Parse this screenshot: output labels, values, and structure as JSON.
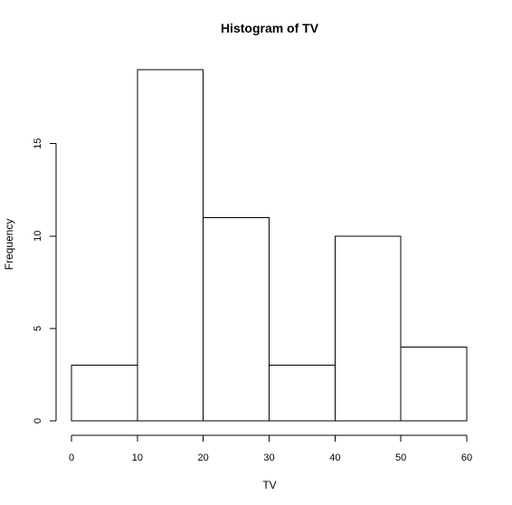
{
  "chart_data": {
    "type": "bar",
    "title": "Histogram of TV",
    "xlabel": "TV",
    "ylabel": "Frequency",
    "bins": [
      {
        "from": 0,
        "to": 10,
        "count": 3
      },
      {
        "from": 10,
        "to": 20,
        "count": 19
      },
      {
        "from": 20,
        "to": 30,
        "count": 11
      },
      {
        "from": 30,
        "to": 40,
        "count": 3
      },
      {
        "from": 40,
        "to": 50,
        "count": 10
      },
      {
        "from": 50,
        "to": 60,
        "count": 4
      }
    ],
    "xticks": [
      "0",
      "10",
      "20",
      "30",
      "40",
      "50",
      "60"
    ],
    "yticks": [
      "0",
      "5",
      "10",
      "15"
    ],
    "xlim": [
      0,
      60
    ],
    "ylim": [
      0,
      19
    ],
    "grid": false,
    "bar_fill": "#ffffff",
    "bar_stroke": "#000000"
  }
}
